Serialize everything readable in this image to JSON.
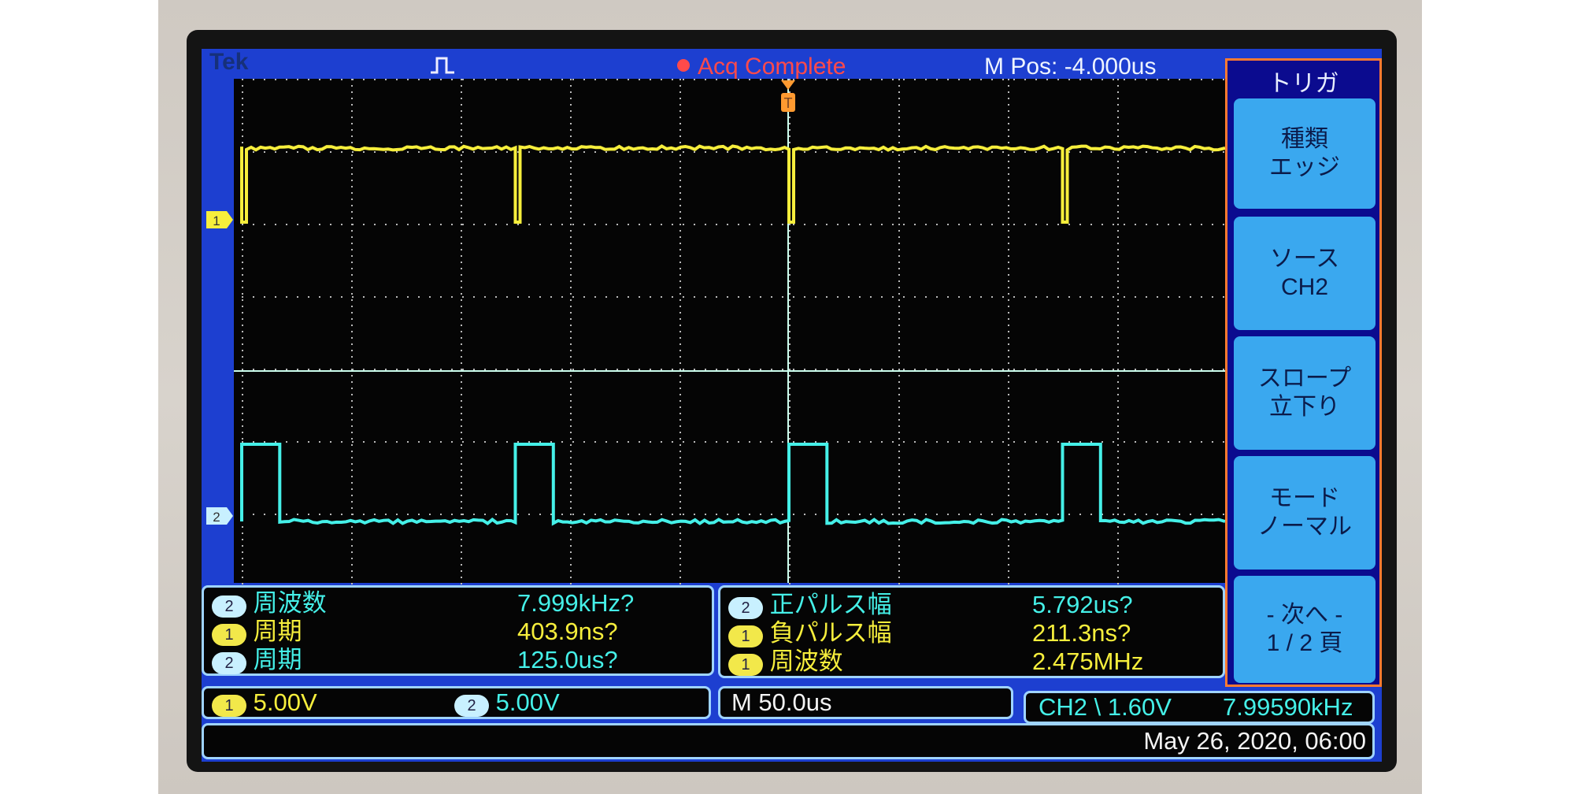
{
  "header": {
    "brand": "Tek",
    "run_icon": "pulse-icon",
    "status": "Acq Complete",
    "status_color": "#ff4a4a",
    "m_pos": "M Pos: -4.000us",
    "trigger_marker": "T"
  },
  "trigger_menu": {
    "title": "トリガ",
    "items": [
      {
        "line1": "種類",
        "line2": "エッジ"
      },
      {
        "line1": "ソース",
        "line2": "CH2"
      },
      {
        "line1": "スロープ",
        "line2": "立下り"
      },
      {
        "line1": "モード",
        "line2": "ノーマル"
      },
      {
        "line1": "- 次へ -",
        "line2": "1 / 2 頁"
      }
    ]
  },
  "channels": {
    "ch1": {
      "marker": "1",
      "color": "#f6ee3c"
    },
    "ch2": {
      "marker": "2",
      "color": "#45f0e8"
    }
  },
  "waveforms": {
    "period_us": 125,
    "timebase_us_per_div": 50,
    "ch1_negative_pulse_width_ns": 211.3,
    "ch2_positive_pulse_width_us": 5.792
  },
  "measurements_left": [
    {
      "ch": "2",
      "label": "周波数",
      "value": "7.999kHz?"
    },
    {
      "ch": "1",
      "label": "周期",
      "value": "403.9ns?"
    },
    {
      "ch": "2",
      "label": "周期",
      "value": "125.0us?"
    }
  ],
  "measurements_right": [
    {
      "ch": "2",
      "label": "正パルス幅",
      "value": "5.792us?"
    },
    {
      "ch": "1",
      "label": "負パルス幅",
      "value": "211.3ns?"
    },
    {
      "ch": "1",
      "label": "周波数",
      "value": "2.475MHz"
    }
  ],
  "status_bar": {
    "ch1_marker": "1",
    "ch1_scale": "5.00V",
    "ch2_marker": "2",
    "ch2_scale": "5.00V",
    "timebase": "M 50.0us",
    "trigger_source": "CH2",
    "trigger_slope_icon": "falling-edge-icon",
    "trigger_slope": "\\",
    "trigger_level": "1.60V",
    "trigger_freq": "7.99590kHz",
    "datetime": "May 26, 2020, 06:00"
  }
}
